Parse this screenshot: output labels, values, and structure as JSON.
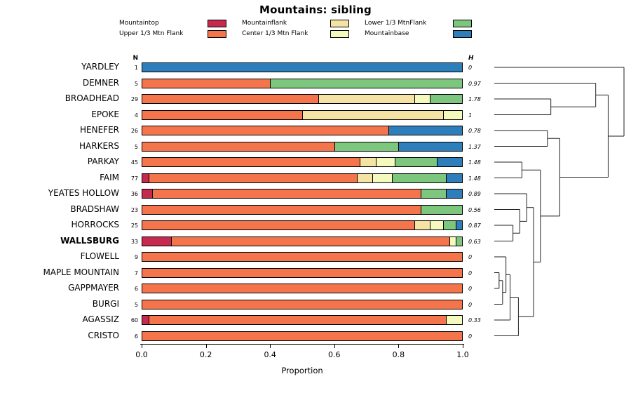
{
  "title": "Mountains: sibling",
  "columns": {
    "n": "N",
    "h": "H"
  },
  "palette": {
    "mountaintop": "#C42B4F",
    "upper": "#F4744C",
    "flank": "#F5E3A4",
    "center": "#F4F9BE",
    "lower": "#7DC67E",
    "base": "#2F7EBC"
  },
  "legend": {
    "columns": [
      [
        {
          "label": "Mountaintop",
          "key": "mountaintop"
        },
        {
          "label": "Upper 1/3 Mtn Flank",
          "key": "upper"
        }
      ],
      [
        {
          "label": "Mountainflank",
          "key": "flank"
        },
        {
          "label": "Center 1/3 Mtn Flank",
          "key": "center"
        }
      ],
      [
        {
          "label": "Lower 1/3 MtnFlank",
          "key": "lower"
        },
        {
          "label": "Mountainbase",
          "key": "base"
        }
      ]
    ]
  },
  "chart_data": {
    "type": "bar",
    "orientation": "horizontal",
    "stacked": true,
    "title": "Mountains: sibling",
    "xlabel": "Proportion",
    "xlim": [
      0,
      1
    ],
    "x_ticks": [
      "0.0",
      "0.2",
      "0.4",
      "0.6",
      "0.8",
      "1.0"
    ],
    "categories_order": [
      "mountaintop",
      "upper",
      "flank",
      "center",
      "lower",
      "base"
    ],
    "category_labels": {
      "mountaintop": "Mountaintop",
      "upper": "Upper 1/3 Mtn Flank",
      "flank": "Mountainflank",
      "center": "Center 1/3 Mtn Flank",
      "lower": "Lower 1/3 MtnFlank",
      "base": "Mountainbase"
    },
    "rows": [
      {
        "label": "YARDLEY",
        "n": 1,
        "h": "0",
        "bold": false,
        "segments": {
          "base": 1.0
        }
      },
      {
        "label": "DEMNER",
        "n": 5,
        "h": "0.97",
        "bold": false,
        "segments": {
          "upper": 0.4,
          "lower": 0.6
        }
      },
      {
        "label": "BROADHEAD",
        "n": 29,
        "h": "1.78",
        "bold": false,
        "segments": {
          "upper": 0.55,
          "flank": 0.3,
          "center": 0.05,
          "lower": 0.1
        }
      },
      {
        "label": "EPOKE",
        "n": 4,
        "h": "1",
        "bold": false,
        "segments": {
          "upper": 0.5,
          "flank": 0.44,
          "center": 0.06
        }
      },
      {
        "label": "HENEFER",
        "n": 26,
        "h": "0.78",
        "bold": false,
        "segments": {
          "upper": 0.77,
          "base": 0.23
        }
      },
      {
        "label": "HARKERS",
        "n": 5,
        "h": "1.37",
        "bold": false,
        "segments": {
          "upper": 0.6,
          "lower": 0.2,
          "base": 0.2
        }
      },
      {
        "label": "PARKAY",
        "n": 45,
        "h": "1.48",
        "bold": false,
        "segments": {
          "upper": 0.68,
          "flank": 0.05,
          "center": 0.06,
          "lower": 0.13,
          "base": 0.08
        }
      },
      {
        "label": "FAIM",
        "n": 77,
        "h": "1.48",
        "bold": false,
        "segments": {
          "mountaintop": 0.02,
          "upper": 0.65,
          "flank": 0.05,
          "center": 0.06,
          "lower": 0.17,
          "base": 0.05
        }
      },
      {
        "label": "YEATES HOLLOW",
        "n": 36,
        "h": "0.89",
        "bold": false,
        "segments": {
          "mountaintop": 0.03,
          "upper": 0.84,
          "lower": 0.08,
          "base": 0.05
        }
      },
      {
        "label": "BRADSHAW",
        "n": 23,
        "h": "0.56",
        "bold": false,
        "segments": {
          "upper": 0.87,
          "lower": 0.13
        }
      },
      {
        "label": "HORROCKS",
        "n": 25,
        "h": "0.87",
        "bold": false,
        "segments": {
          "upper": 0.85,
          "flank": 0.05,
          "center": 0.04,
          "lower": 0.04,
          "base": 0.02
        }
      },
      {
        "label": "WALLSBURG",
        "n": 33,
        "h": "0.63",
        "bold": true,
        "segments": {
          "mountaintop": 0.09,
          "upper": 0.87,
          "center": 0.02,
          "lower": 0.02
        }
      },
      {
        "label": "FLOWELL",
        "n": 9,
        "h": "0",
        "bold": false,
        "segments": {
          "upper": 1.0
        }
      },
      {
        "label": "MAPLE MOUNTAIN",
        "n": 7,
        "h": "0",
        "bold": false,
        "segments": {
          "upper": 1.0
        }
      },
      {
        "label": "GAPPMAYER",
        "n": 6,
        "h": "0",
        "bold": false,
        "segments": {
          "upper": 1.0
        }
      },
      {
        "label": "BURGI",
        "n": 5,
        "h": "0",
        "bold": false,
        "segments": {
          "upper": 1.0
        }
      },
      {
        "label": "AGASSIZ",
        "n": 60,
        "h": "0.33",
        "bold": false,
        "segments": {
          "mountaintop": 0.02,
          "upper": 0.93,
          "center": 0.05
        }
      },
      {
        "label": "CRISTO",
        "n": 6,
        "h": "0",
        "bold": false,
        "segments": {
          "upper": 1.0
        }
      }
    ],
    "dendrogram": {
      "h": 1.0,
      "children": [
        {
          "leaf": "YARDLEY"
        },
        {
          "h": 0.878,
          "children": [
            {
              "h": 0.782,
              "children": [
                {
                  "leaf": "DEMNER"
                },
                {
                  "h": 0.436,
                  "children": [
                    {
                      "leaf": "BROADHEAD"
                    },
                    {
                      "leaf": "EPOKE"
                    }
                  ]
                }
              ]
            },
            {
              "h": 0.505,
              "children": [
                {
                  "h": 0.41,
                  "children": [
                    {
                      "leaf": "HENEFER"
                    },
                    {
                      "leaf": "HARKERS"
                    }
                  ]
                },
                {
                  "h": 0.356,
                  "children": [
                    {
                      "h": 0.213,
                      "children": [
                        {
                          "leaf": "PARKAY"
                        },
                        {
                          "leaf": "FAIM"
                        }
                      ]
                    },
                    {
                      "h": 0.303,
                      "children": [
                        {
                          "h": 0.25,
                          "children": [
                            {
                              "leaf": "YEATES HOLLOW"
                            },
                            {
                              "h": 0.197,
                              "children": [
                                {
                                  "leaf": "BRADSHAW"
                                },
                                {
                                  "h": 0.144,
                                  "children": [
                                    {
                                      "leaf": "HORROCKS"
                                    },
                                    {
                                      "leaf": "WALLSBURG"
                                    }
                                  ]
                                }
                              ]
                            }
                          ]
                        },
                        {
                          "h": 0.186,
                          "children": [
                            {
                              "h": 0.122,
                              "children": [
                                {
                                  "h": 0.09,
                                  "children": [
                                    {
                                      "leaf": "FLOWELL"
                                    },
                                    {
                                      "h": 0.064,
                                      "children": [
                                        {
                                          "h": 0.037,
                                          "children": [
                                            {
                                              "leaf": "MAPLE MOUNTAIN"
                                            },
                                            {
                                              "leaf": "GAPPMAYER"
                                            }
                                          ]
                                        },
                                        {
                                          "leaf": "BURGI"
                                        }
                                      ]
                                    }
                                  ]
                                },
                                {
                                  "leaf": "AGASSIZ"
                                }
                              ]
                            },
                            {
                              "leaf": "CRISTO"
                            }
                          ]
                        }
                      ]
                    }
                  ]
                }
              ]
            }
          ]
        }
      ]
    }
  }
}
